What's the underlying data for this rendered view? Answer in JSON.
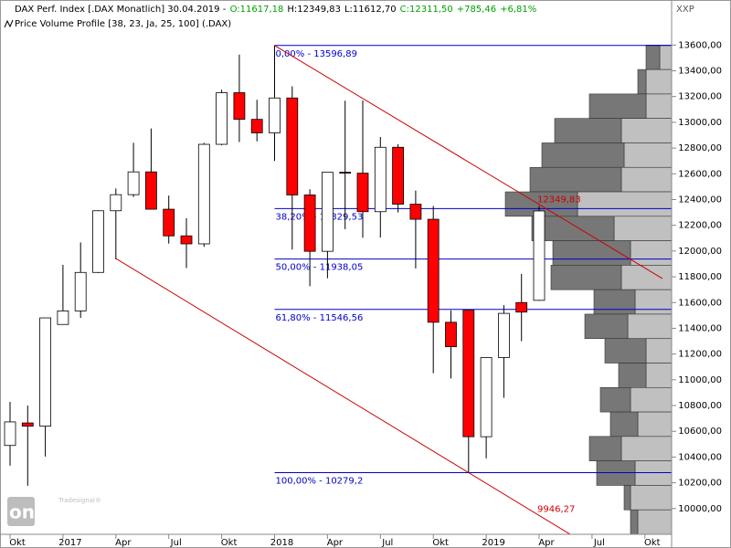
{
  "chart_data": {
    "type": "candlestick",
    "title": "DAX Perf. Index [.DAX Monatlich] 30.04.2019 -",
    "header": [
      {
        "text": "O:11617,18",
        "color": "#00a000"
      },
      {
        "text": "H:12349,83",
        "color": "#000000"
      },
      {
        "text": "L:11612,70",
        "color": "#000000"
      },
      {
        "text": "C:12311,50",
        "color": "#00a000"
      },
      {
        "text": "+785,46",
        "color": "#00a000"
      },
      {
        "text": "+6,81%",
        "color": "#00a000"
      }
    ],
    "subtitle": "Price Volume Profile [38, 23, Ja, 25, 100] (.DAX)",
    "corner_label": "XXP",
    "logo": "online",
    "logo_small": "Tradesignal®",
    "categories": [
      "Okt",
      null,
      null,
      "2017",
      null,
      null,
      "Apr",
      null,
      null,
      "Jul",
      null,
      null,
      "Okt",
      null,
      null,
      "2018",
      null,
      null,
      "Apr",
      null,
      null,
      "Jul",
      null,
      null,
      "Okt",
      null,
      null,
      "2019",
      null,
      null,
      "Apr",
      null,
      null,
      "Jul",
      null,
      null,
      "Okt"
    ],
    "open": [
      10490,
      10665,
      10640,
      11430,
      11535,
      11834,
      12313,
      12438,
      12615,
      12325,
      12118,
      12056,
      12829,
      13230,
      13023,
      12918,
      13189,
      12436,
      11998,
      12612,
      12605,
      12306,
      12806,
      12364,
      12247,
      11447,
      11540,
      10558,
      11173,
      11600,
      11617.18,
      null,
      null,
      null,
      null,
      null,
      null
    ],
    "high": [
      10829,
      10800,
      11482,
      11893,
      12067,
      12317,
      12486,
      12841,
      12952,
      12431,
      12255,
      12840,
      13253,
      13526,
      13175,
      13596.89,
      13280,
      12480,
      12612,
      13168,
      13170,
      12886,
      12830,
      12470,
      12350,
      11540,
      11541,
      11175,
      11580,
      11823,
      12349.83,
      null,
      null,
      null,
      null,
      null,
      null
    ],
    "low": [
      10333,
      10177,
      10404,
      11436,
      11481,
      11830,
      11936,
      12420,
      12325,
      12058,
      11868,
      12033,
      12822,
      12847,
      12852,
      12700,
      12012,
      11727,
      11789,
      12170,
      12104,
      12105,
      12300,
      11865,
      11051,
      11010,
      10279.2,
      10390,
      10860,
      11300,
      11612.7,
      null,
      null,
      null,
      null,
      null,
      null
    ],
    "close": [
      10673,
      10640,
      11481,
      11535,
      11834,
      12313,
      12438,
      12615,
      12325,
      12118,
      12056,
      12829,
      13230,
      13023,
      12918,
      13189,
      12436,
      11998,
      12612,
      12605,
      12306,
      12806,
      12364,
      12247,
      11447,
      11257,
      10558,
      11173,
      11516,
      11526,
      12311.5,
      null,
      null,
      null,
      null,
      null,
      null
    ],
    "up_color": "#ffffff",
    "down_color": "#ff0000",
    "ylim": [
      9800,
      13950
    ],
    "yticks": [
      {
        "value": 10000,
        "label": "10000,00"
      },
      {
        "value": 10200,
        "label": "10200,00"
      },
      {
        "value": 10400,
        "label": "10400,00"
      },
      {
        "value": 10600,
        "label": "10600,00"
      },
      {
        "value": 10800,
        "label": "10800,00"
      },
      {
        "value": 11000,
        "label": "11000,00"
      },
      {
        "value": 11200,
        "label": "11200,00"
      },
      {
        "value": 11400,
        "label": "11400,00"
      },
      {
        "value": 11600,
        "label": "11600,00"
      },
      {
        "value": 11800,
        "label": "11800,00"
      },
      {
        "value": 12000,
        "label": "12000,00"
      },
      {
        "value": 12200,
        "label": "12200,00"
      },
      {
        "value": 12400,
        "label": "12400,00"
      },
      {
        "value": 12600,
        "label": "12600,00"
      },
      {
        "value": 12800,
        "label": "12800,00"
      },
      {
        "value": 13000,
        "label": "13000,00"
      },
      {
        "value": 13200,
        "label": "13200,00"
      },
      {
        "value": 13400,
        "label": "13400,00"
      },
      {
        "value": 13600,
        "label": "13600,00"
      }
    ],
    "fib_color": "#0000cc",
    "fib": [
      {
        "value": 13596.89,
        "label": "0,00% - 13596,89"
      },
      {
        "value": 12329.53,
        "label": "38,20% - 12329,53"
      },
      {
        "value": 11938.05,
        "label": "50,00% - 11938,05"
      },
      {
        "value": 11546.56,
        "label": "61,80% - 11546,56"
      },
      {
        "value": 10279.2,
        "label": "100,00% - 10279,2"
      }
    ],
    "trend_color": "#cc0000",
    "trendlines": [
      {
        "x": [
          15,
          37
        ],
        "values": [
          13596.89,
          11786
        ]
      },
      {
        "x": [
          6,
          32
        ],
        "values": [
          11942,
          9780
        ]
      }
    ],
    "annotations": [
      {
        "text": "12349,83",
        "x": 30,
        "value": 12349.83
      },
      {
        "text": "9946,27",
        "x": 30,
        "value": 9946.27
      }
    ],
    "profile": {
      "bins": [
        13600,
        13410,
        13220,
        13030,
        12840,
        12650,
        12460,
        12270,
        12080,
        11890,
        11700,
        11510,
        11320,
        11130,
        10940,
        10750,
        10560,
        10370,
        10180,
        9990,
        9800
      ],
      "xlim": [
        0,
        200
      ],
      "series": [
        {
          "color": "#c0c0c0",
          "values": [
            13,
            28,
            28,
            55,
            52,
            55,
            103,
            63,
            45,
            55,
            40,
            48,
            28,
            28,
            45,
            37,
            55,
            40,
            45,
            37
          ]
        },
        {
          "color": "#777777",
          "values": [
            15,
            9,
            62,
            73,
            90,
            100,
            79,
            90,
            85,
            77,
            45,
            47,
            45,
            30,
            33,
            30,
            35,
            42,
            7,
            8
          ]
        }
      ]
    }
  }
}
